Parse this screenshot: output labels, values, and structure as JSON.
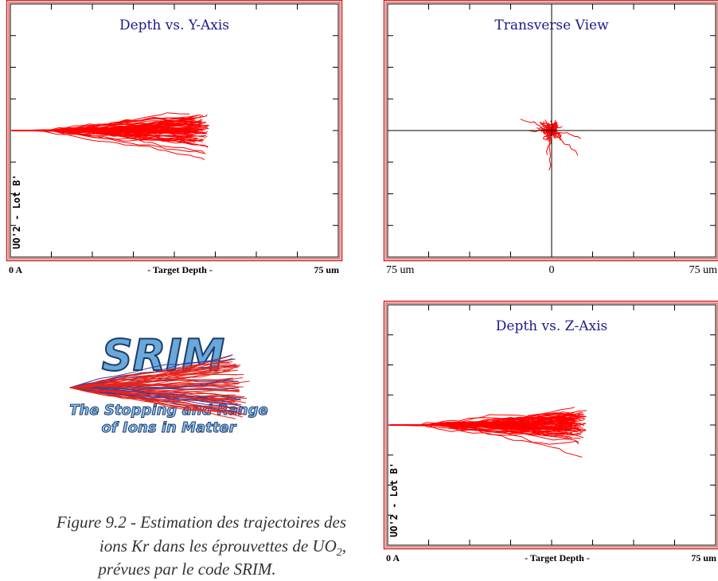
{
  "panels": [
    {
      "title": "Depth vs. Y-Axis",
      "side_label": "UO'2 - Lot B'",
      "x_left": "0 A",
      "x_center": "- Target Depth -",
      "x_right": "75 um"
    },
    {
      "title": "Transverse View",
      "x_left": "75 um",
      "x_center": "0",
      "x_right": "75 um"
    },
    {
      "title": "Depth vs. Z-Axis",
      "side_label": "UO'2 - Lot B'",
      "x_left": "0 A",
      "x_center": "- Target Depth -",
      "x_right": "75 um"
    }
  ],
  "logo": {
    "name": "SRIM",
    "line1": "The Stopping and Range",
    "line2": "of Ions in Matter"
  },
  "caption": {
    "line1": "Figure 9.2 - Estimation des trajectoires des",
    "line2": "ions Kr dans les éprouvettes de UO",
    "line2_sub": "2",
    "line2_end": ",",
    "line3": "prévues par le code SRIM."
  }
}
